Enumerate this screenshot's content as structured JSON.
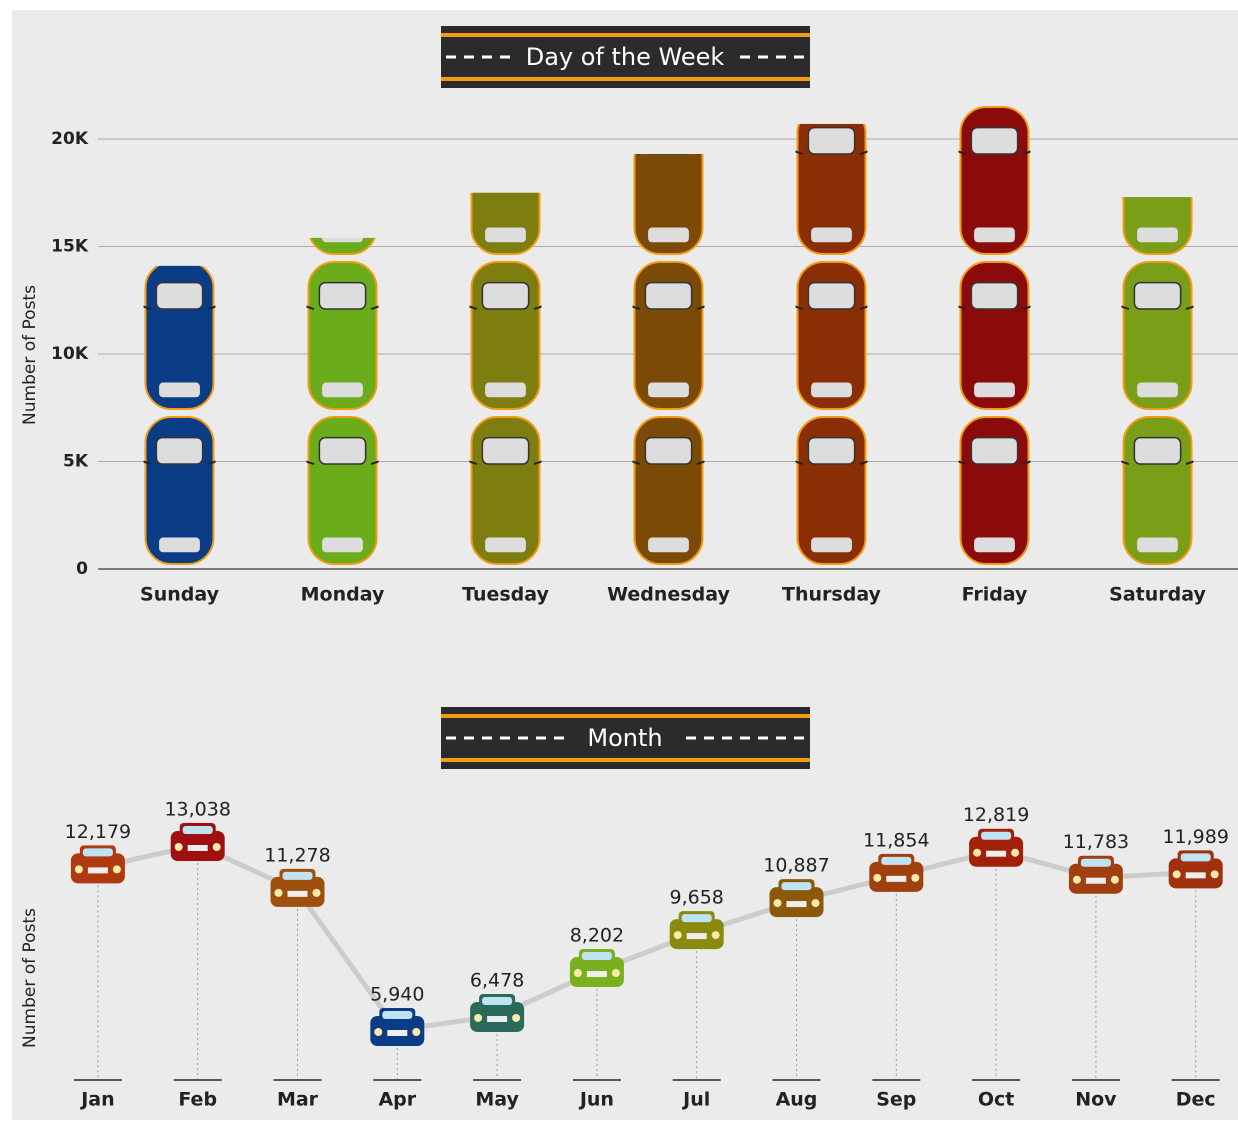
{
  "chart_data": [
    {
      "type": "pictogram-bar",
      "title": "Day of the Week",
      "y_label": "Number of Posts",
      "categories": [
        "Sunday",
        "Monday",
        "Tuesday",
        "Wednesday",
        "Thursday",
        "Friday",
        "Saturday"
      ],
      "values": [
        14100,
        15400,
        17500,
        19300,
        20700,
        21700,
        17300
      ],
      "colors": [
        "#0b3d86",
        "#6aac1a",
        "#7d7d10",
        "#7a4a06",
        "#8a2e06",
        "#8b0a0a",
        "#7a9e18"
      ],
      "ylim": [
        0,
        22000
      ],
      "yticks": [
        0,
        {
          "value": 5000,
          "label": "5K"
        },
        {
          "value": 10000,
          "label": "10K"
        },
        {
          "value": 15000,
          "label": "15K"
        },
        {
          "value": 20000,
          "label": "20K"
        }
      ],
      "grid": true
    },
    {
      "type": "pictogram-line",
      "title": "Month",
      "y_label": "Number of Posts",
      "categories": [
        "Jan",
        "Feb",
        "Mar",
        "Apr",
        "May",
        "Jun",
        "Jul",
        "Aug",
        "Sep",
        "Oct",
        "Nov",
        "Dec"
      ],
      "values": [
        12179,
        13038,
        11278,
        5940,
        6478,
        8202,
        9658,
        10887,
        11854,
        12819,
        11783,
        11989
      ],
      "value_labels": [
        "12,179",
        "13,038",
        "11,278",
        "5,940",
        "6,478",
        "8,202",
        "9,658",
        "10,887",
        "11,854",
        "12,819",
        "11,783",
        "11,989"
      ],
      "colors": [
        "#b03a10",
        "#a01010",
        "#a0500e",
        "#0b3d86",
        "#2a6a5a",
        "#7ab020",
        "#8a8a10",
        "#8a5a0a",
        "#a0400e",
        "#a0200a",
        "#a0400e",
        "#a0300e"
      ],
      "line_color": "#cccccc"
    }
  ]
}
